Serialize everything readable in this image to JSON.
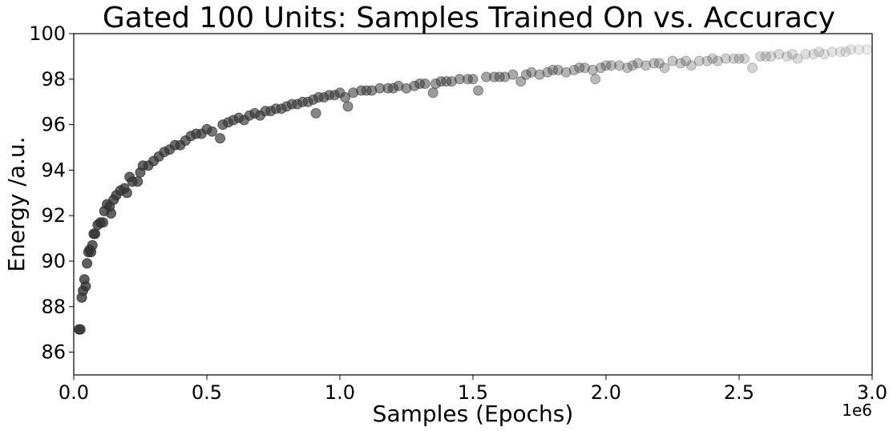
{
  "chart_data": {
    "type": "scatter",
    "title": "Gated 100 Units: Samples Trained On vs. Accuracy",
    "xlabel": "Samples (Epochs)",
    "ylabel": "Energy /a.u.",
    "x_offset_label": "1e6",
    "xlim": [
      0,
      3.0
    ],
    "ylim": [
      85,
      100
    ],
    "x_ticks": [
      "0.0",
      "0.5",
      "1.0",
      "1.5",
      "2.0",
      "2.5",
      "3.0"
    ],
    "y_ticks": [
      "86",
      "88",
      "90",
      "92",
      "94",
      "96",
      "98",
      "100"
    ],
    "x_tick_values": [
      0,
      0.5,
      1.0,
      1.5,
      2.0,
      2.5,
      3.0
    ],
    "y_tick_values": [
      86,
      88,
      90,
      92,
      94,
      96,
      98,
      100
    ],
    "marker_color": "#333333",
    "grid": false,
    "series": [
      {
        "points": [
          [
            0.02,
            87.0
          ],
          [
            0.025,
            87.0
          ],
          [
            0.03,
            88.4
          ],
          [
            0.035,
            88.7
          ],
          [
            0.04,
            89.2
          ],
          [
            0.045,
            88.9
          ],
          [
            0.05,
            89.9
          ],
          [
            0.055,
            90.4
          ],
          [
            0.06,
            90.5
          ],
          [
            0.065,
            90.4
          ],
          [
            0.07,
            90.7
          ],
          [
            0.075,
            91.2
          ],
          [
            0.08,
            91.2
          ],
          [
            0.09,
            91.6
          ],
          [
            0.1,
            91.7
          ],
          [
            0.11,
            91.7
          ],
          [
            0.115,
            92.2
          ],
          [
            0.125,
            92.5
          ],
          [
            0.135,
            92.4
          ],
          [
            0.14,
            92.1
          ],
          [
            0.15,
            92.7
          ],
          [
            0.16,
            92.9
          ],
          [
            0.175,
            93.1
          ],
          [
            0.19,
            93.2
          ],
          [
            0.2,
            93.0
          ],
          [
            0.21,
            93.7
          ],
          [
            0.22,
            93.5
          ],
          [
            0.24,
            93.5
          ],
          [
            0.25,
            93.9
          ],
          [
            0.26,
            94.2
          ],
          [
            0.28,
            94.2
          ],
          [
            0.3,
            94.4
          ],
          [
            0.32,
            94.6
          ],
          [
            0.34,
            94.8
          ],
          [
            0.36,
            94.9
          ],
          [
            0.38,
            95.1
          ],
          [
            0.4,
            95.1
          ],
          [
            0.42,
            95.3
          ],
          [
            0.44,
            95.5
          ],
          [
            0.46,
            95.6
          ],
          [
            0.48,
            95.6
          ],
          [
            0.5,
            95.8
          ],
          [
            0.52,
            95.7
          ],
          [
            0.55,
            95.4
          ],
          [
            0.56,
            96.0
          ],
          [
            0.58,
            96.1
          ],
          [
            0.6,
            96.2
          ],
          [
            0.62,
            96.3
          ],
          [
            0.64,
            96.2
          ],
          [
            0.66,
            96.4
          ],
          [
            0.68,
            96.5
          ],
          [
            0.7,
            96.4
          ],
          [
            0.72,
            96.6
          ],
          [
            0.74,
            96.6
          ],
          [
            0.76,
            96.7
          ],
          [
            0.78,
            96.7
          ],
          [
            0.8,
            96.8
          ],
          [
            0.82,
            96.9
          ],
          [
            0.84,
            96.9
          ],
          [
            0.86,
            97.0
          ],
          [
            0.88,
            97.0
          ],
          [
            0.9,
            97.1
          ],
          [
            0.91,
            96.5
          ],
          [
            0.92,
            97.2
          ],
          [
            0.94,
            97.2
          ],
          [
            0.96,
            97.3
          ],
          [
            0.98,
            97.3
          ],
          [
            1.0,
            97.4
          ],
          [
            1.02,
            97.2
          ],
          [
            1.03,
            96.8
          ],
          [
            1.05,
            97.4
          ],
          [
            1.08,
            97.5
          ],
          [
            1.1,
            97.5
          ],
          [
            1.12,
            97.5
          ],
          [
            1.15,
            97.6
          ],
          [
            1.18,
            97.6
          ],
          [
            1.2,
            97.6
          ],
          [
            1.22,
            97.7
          ],
          [
            1.25,
            97.6
          ],
          [
            1.28,
            97.7
          ],
          [
            1.3,
            97.8
          ],
          [
            1.32,
            97.8
          ],
          [
            1.35,
            97.4
          ],
          [
            1.36,
            97.8
          ],
          [
            1.38,
            97.9
          ],
          [
            1.4,
            97.9
          ],
          [
            1.42,
            97.9
          ],
          [
            1.45,
            98.0
          ],
          [
            1.48,
            98.0
          ],
          [
            1.5,
            98.0
          ],
          [
            1.52,
            97.5
          ],
          [
            1.55,
            98.1
          ],
          [
            1.58,
            98.1
          ],
          [
            1.6,
            98.1
          ],
          [
            1.62,
            98.1
          ],
          [
            1.65,
            98.2
          ],
          [
            1.68,
            97.9
          ],
          [
            1.7,
            98.2
          ],
          [
            1.72,
            98.3
          ],
          [
            1.75,
            98.2
          ],
          [
            1.78,
            98.3
          ],
          [
            1.8,
            98.4
          ],
          [
            1.82,
            98.4
          ],
          [
            1.85,
            98.3
          ],
          [
            1.88,
            98.4
          ],
          [
            1.9,
            98.5
          ],
          [
            1.92,
            98.5
          ],
          [
            1.95,
            98.4
          ],
          [
            1.96,
            98.0
          ],
          [
            1.98,
            98.5
          ],
          [
            2.0,
            98.6
          ],
          [
            2.02,
            98.6
          ],
          [
            2.05,
            98.6
          ],
          [
            2.08,
            98.5
          ],
          [
            2.1,
            98.6
          ],
          [
            2.12,
            98.7
          ],
          [
            2.15,
            98.6
          ],
          [
            2.18,
            98.7
          ],
          [
            2.2,
            98.7
          ],
          [
            2.22,
            98.5
          ],
          [
            2.25,
            98.8
          ],
          [
            2.28,
            98.7
          ],
          [
            2.3,
            98.8
          ],
          [
            2.32,
            98.6
          ],
          [
            2.35,
            98.8
          ],
          [
            2.38,
            98.8
          ],
          [
            2.4,
            98.9
          ],
          [
            2.42,
            98.8
          ],
          [
            2.45,
            98.9
          ],
          [
            2.48,
            98.9
          ],
          [
            2.5,
            98.9
          ],
          [
            2.52,
            98.9
          ],
          [
            2.55,
            98.5
          ],
          [
            2.58,
            99.0
          ],
          [
            2.6,
            99.0
          ],
          [
            2.62,
            99.0
          ],
          [
            2.65,
            99.1
          ],
          [
            2.68,
            99.0
          ],
          [
            2.7,
            99.1
          ],
          [
            2.72,
            98.9
          ],
          [
            2.75,
            99.1
          ],
          [
            2.78,
            99.1
          ],
          [
            2.8,
            99.2
          ],
          [
            2.82,
            99.1
          ],
          [
            2.85,
            99.2
          ],
          [
            2.88,
            99.2
          ],
          [
            2.9,
            99.2
          ],
          [
            2.92,
            99.3
          ],
          [
            2.95,
            99.3
          ],
          [
            2.98,
            99.3
          ]
        ]
      }
    ]
  }
}
